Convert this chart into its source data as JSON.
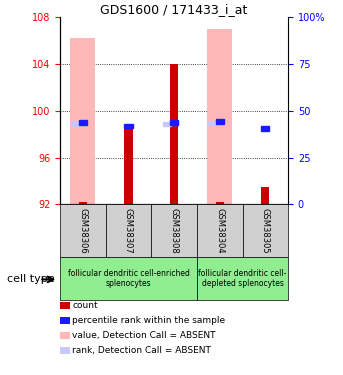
{
  "title": "GDS1600 / 171433_i_at",
  "samples": [
    "GSM38306",
    "GSM38307",
    "GSM38308",
    "GSM38304",
    "GSM38305"
  ],
  "ylim": [
    92,
    108
  ],
  "yticks_left": [
    92,
    96,
    100,
    104,
    108
  ],
  "yticks_right": [
    0,
    25,
    50,
    75,
    100
  ],
  "ylim_right": [
    0,
    100
  ],
  "red_bar_bottom": 92,
  "red_bar_tops": [
    92.2,
    98.5,
    104.0,
    92.2,
    93.5
  ],
  "pink_bar_tops": [
    106.2,
    92,
    92,
    107.0,
    92
  ],
  "blue_sq_y": [
    99.0,
    98.7,
    99.0,
    99.1,
    98.5
  ],
  "blue_sq_show": [
    true,
    true,
    true,
    true,
    true
  ],
  "lblue_sq_y": [
    98.9,
    null,
    98.85,
    98.95,
    null
  ],
  "lblue_sq_show": [
    true,
    false,
    true,
    true,
    false
  ],
  "group1_label": "follicular dendritic cell-enriched\nsplenocytes",
  "group2_label": "follicular dendritic cell-\ndepleted splenocytes",
  "cell_type_label": "cell type",
  "legend_items": [
    {
      "color": "#cc0000",
      "label": "count"
    },
    {
      "color": "#1a1aff",
      "label": "percentile rank within the sample"
    },
    {
      "color": "#ffb8b8",
      "label": "value, Detection Call = ABSENT"
    },
    {
      "color": "#c8c8ff",
      "label": "rank, Detection Call = ABSENT"
    }
  ],
  "pink_color": "#ffb8b8",
  "red_color": "#cc0000",
  "blue_color": "#1a1aff",
  "lightblue_color": "#c8c8ff",
  "group_bg_color": "#90ee90",
  "sample_bg_color": "#d0d0d0"
}
